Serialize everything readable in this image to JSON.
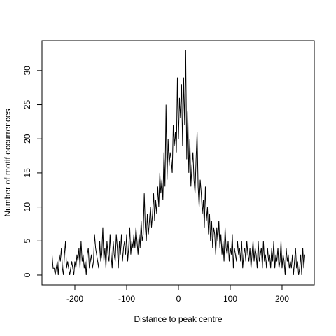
{
  "chart_data": {
    "type": "line",
    "xlabel": "Distance to peak centre",
    "ylabel": "Number of motif occurrences",
    "color": "#000000",
    "xlim": [
      -263.5,
      262.2
    ],
    "ylim": [
      -1.44,
      34.4
    ],
    "xticks": [
      -200,
      -100,
      0,
      100,
      200
    ],
    "yticks": [
      0,
      5,
      10,
      15,
      20,
      25,
      30
    ],
    "x": [
      -244,
      -242,
      -240,
      -238,
      -236,
      -234,
      -232,
      -230,
      -228,
      -226,
      -224,
      -222,
      -220,
      -218,
      -216,
      -214,
      -212,
      -210,
      -208,
      -206,
      -204,
      -202,
      -200,
      -198,
      -196,
      -194,
      -192,
      -190,
      -188,
      -186,
      -184,
      -182,
      -180,
      -178,
      -176,
      -174,
      -172,
      -170,
      -168,
      -166,
      -164,
      -162,
      -160,
      -158,
      -156,
      -154,
      -152,
      -150,
      -148,
      -146,
      -144,
      -142,
      -140,
      -138,
      -136,
      -134,
      -132,
      -130,
      -128,
      -126,
      -124,
      -122,
      -120,
      -118,
      -116,
      -114,
      -112,
      -110,
      -108,
      -106,
      -104,
      -102,
      -100,
      -98,
      -96,
      -94,
      -92,
      -90,
      -88,
      -86,
      -84,
      -82,
      -80,
      -78,
      -76,
      -74,
      -72,
      -70,
      -68,
      -66,
      -64,
      -62,
      -60,
      -58,
      -56,
      -54,
      -52,
      -50,
      -48,
      -46,
      -44,
      -42,
      -40,
      -38,
      -36,
      -34,
      -32,
      -30,
      -28,
      -26,
      -24,
      -22,
      -20,
      -18,
      -16,
      -14,
      -12,
      -10,
      -8,
      -6,
      -4,
      -2,
      0,
      2,
      4,
      6,
      8,
      10,
      12,
      14,
      16,
      18,
      20,
      22,
      24,
      26,
      28,
      30,
      32,
      34,
      36,
      38,
      40,
      42,
      44,
      46,
      48,
      50,
      52,
      54,
      56,
      58,
      60,
      62,
      64,
      66,
      68,
      70,
      72,
      74,
      76,
      78,
      80,
      82,
      84,
      86,
      88,
      90,
      92,
      94,
      96,
      98,
      100,
      102,
      104,
      106,
      108,
      110,
      112,
      114,
      116,
      118,
      120,
      122,
      124,
      126,
      128,
      130,
      132,
      134,
      136,
      138,
      140,
      142,
      144,
      146,
      148,
      150,
      152,
      154,
      156,
      158,
      160,
      162,
      164,
      166,
      168,
      170,
      172,
      174,
      176,
      178,
      180,
      182,
      184,
      186,
      188,
      190,
      192,
      194,
      196,
      198,
      200,
      202,
      204,
      206,
      208,
      210,
      212,
      214,
      216,
      218,
      220,
      222,
      224,
      226,
      228,
      230,
      232,
      234,
      236,
      238,
      240,
      242,
      244
    ],
    "values": [
      3,
      1,
      1,
      0,
      1,
      2,
      0,
      3,
      2,
      4,
      1,
      0,
      3,
      5,
      1,
      2,
      1,
      0,
      1,
      2,
      1,
      0,
      2,
      1,
      3,
      2,
      4,
      1,
      5,
      2,
      3,
      1,
      2,
      0,
      3,
      4,
      1,
      2,
      3,
      1,
      2,
      6,
      4,
      3,
      2,
      1,
      5,
      2,
      3,
      7,
      2,
      4,
      1,
      5,
      3,
      2,
      6,
      3,
      1,
      5,
      3,
      2,
      6,
      4,
      1,
      5,
      3,
      6,
      2,
      4,
      5,
      3,
      6,
      2,
      4,
      7,
      3,
      5,
      4,
      6,
      4,
      7,
      5,
      3,
      6,
      4,
      8,
      5,
      6,
      12,
      7,
      5,
      9,
      6,
      8,
      10,
      7,
      9,
      12,
      8,
      11,
      9,
      13,
      10,
      15,
      12,
      14,
      11,
      18,
      13,
      25,
      14,
      20,
      16,
      18,
      17,
      15,
      22,
      19,
      21,
      18,
      29,
      20,
      26,
      23,
      28,
      19,
      29,
      22,
      33,
      17,
      24,
      15,
      20,
      13,
      16,
      18,
      14,
      12,
      17,
      21,
      13,
      10,
      14,
      12,
      9,
      11,
      7,
      13,
      8,
      10,
      6,
      9,
      5,
      8,
      4,
      7,
      6,
      3,
      7,
      5,
      8,
      4,
      6,
      3,
      5,
      2,
      7,
      4,
      3,
      5,
      2,
      4,
      3,
      6,
      1,
      4,
      3,
      2,
      5,
      3,
      4,
      2,
      5,
      1,
      3,
      4,
      2,
      5,
      3,
      2,
      4,
      1,
      3,
      5,
      2,
      4,
      3,
      1,
      5,
      2,
      3,
      4,
      1,
      5,
      2,
      3,
      1,
      4,
      2,
      3,
      1,
      4,
      2,
      5,
      1,
      3,
      2,
      4,
      1,
      2,
      5,
      1,
      3,
      2,
      0,
      4,
      2,
      3,
      1,
      2,
      1,
      3,
      0,
      2,
      4,
      1,
      2,
      0,
      1,
      3,
      0,
      4,
      1,
      3
    ]
  }
}
